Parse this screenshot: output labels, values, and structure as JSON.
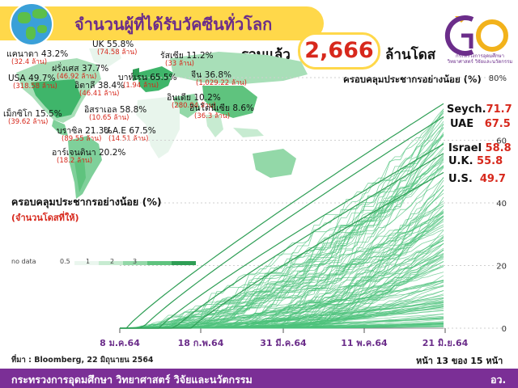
{
  "header": {
    "title": "จำนวนผู้ที่ได้รับวัคซีนทั่วโลก",
    "total_label": "รวมแล้ว",
    "total_value": "2,666",
    "total_unit": "ล้านโดส"
  },
  "logo": {
    "caption": "กระทรวงการอุดมศึกษา วิทยาศาสตร์ วิจัยและนวัตกรรม"
  },
  "map": {
    "countries": [
      {
        "name": "แคนาดา 43.2%",
        "doses": "(32.4 ล้าน)"
      },
      {
        "name": "USA 49.7%",
        "doses": "(318.58 ล้าน)"
      },
      {
        "name": "เม็กซิโก 15.5%",
        "doses": "(39.62 ล้าน)"
      },
      {
        "name": "UK 55.8%",
        "doses": "(74.58 ล้าน)"
      },
      {
        "name": "ฝรั่งเศส 37.7%",
        "doses": "(46.92 ล้าน)"
      },
      {
        "name": "อิตาลี 38.4%",
        "doses": "(46.41 ล้าน)"
      },
      {
        "name": "รัสเซีย 11.2%",
        "doses": "(33 ล้าน)"
      },
      {
        "name": "บาห์เรน 65.5%",
        "doses": "(1.94 ล้าน)"
      },
      {
        "name": "จีน 36.8%",
        "doses": "(1,029.22 ล้าน)"
      },
      {
        "name": "อินเดีย 10.2%",
        "doses": "(280.04 ล้าน)"
      },
      {
        "name": "อิสราเอล 58.8%",
        "doses": "(10.65 ล้าน)"
      },
      {
        "name": "U.A.E 67.5%",
        "doses": "(14.51 ล้าน)"
      },
      {
        "name": "อินโดนีเซีย 8.6%",
        "doses": "(36.3 ล้าน)"
      },
      {
        "name": "บราซิล 21.3%",
        "doses": "(89.55 ล้าน)"
      },
      {
        "name": "อาร์เจนตินา 20.2%",
        "doses": "(18.2 ล้าน)"
      }
    ]
  },
  "legend": {
    "title": "ครอบคลุมประชากรอย่างน้อย (%)",
    "subtitle": "(จำนวนโดสที่ให้)",
    "ticks": [
      "no data",
      "0.5",
      "1",
      "2",
      "3"
    ],
    "colors": [
      "#eaf6ee",
      "#c7ebd1",
      "#93d8a8",
      "#5fc37e",
      "#2e9e55"
    ]
  },
  "chart_data": {
    "type": "line",
    "title": "ครอบคลุมประชากรอย่างน้อย (%)",
    "xlabel": "",
    "ylabel": "",
    "x_ticks": [
      "8 ม.ค.64",
      "18 ก.พ.64",
      "31 มี.ค.64",
      "11 พ.ค.64",
      "21 มิ.ย.64"
    ],
    "x_range": [
      "2021-01-08",
      "2021-06-22"
    ],
    "y_ticks": [
      "0",
      "20",
      "40",
      "60",
      "80%"
    ],
    "ylim": [
      0,
      80
    ],
    "highlighted": [
      {
        "name": "Seych.",
        "value": "71.7",
        "percent": 71.7
      },
      {
        "name": "UAE",
        "value": "67.5",
        "percent": 67.5
      },
      {
        "name": "Israel",
        "value": "58.8",
        "percent": 58.8
      },
      {
        "name": "U.K.",
        "value": "55.8",
        "percent": 55.8
      },
      {
        "name": "U.S.",
        "value": "49.7",
        "percent": 49.7
      }
    ],
    "series_count": 150,
    "line_color": "#4cc27a",
    "grid": true
  },
  "footer": {
    "source": "ที่มา : Bloomberg, 22 มิถุนายน 2564",
    "page": "หน้า 13 ของ 15 หน้า",
    "org": "กระทรวงการอุดมศึกษา วิทยาศาสตร์ วิจัยและนวัตกรรม",
    "org_short": "อว."
  }
}
